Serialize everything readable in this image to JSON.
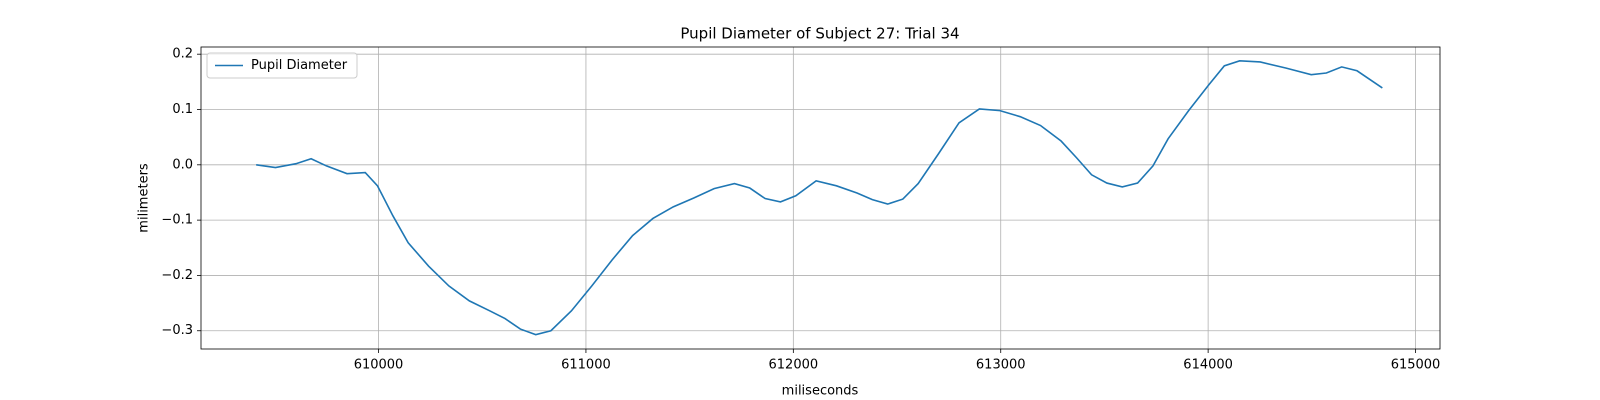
{
  "chart_data": {
    "type": "line",
    "title": "Pupil Diameter of Subject 27: Trial 34",
    "xlabel": "miliseconds",
    "ylabel": "milimeters",
    "grid": true,
    "legend": "upper left",
    "xlim": [
      609144,
      615118
    ],
    "ylim": [
      -0.333,
      0.213
    ],
    "xticks": [
      610000,
      611000,
      612000,
      613000,
      614000,
      615000
    ],
    "yticks": [
      {
        "value": -0.3,
        "label": "−0.3"
      },
      {
        "value": -0.2,
        "label": "−0.2"
      },
      {
        "value": -0.1,
        "label": "−0.1"
      },
      {
        "value": 0.0,
        "label": "0.0"
      },
      0.1,
      0.2
    ],
    "x": [
      609410,
      609503,
      609602,
      609675,
      609749,
      609848,
      609936,
      609995,
      610069,
      610143,
      610241,
      610339,
      610438,
      610536,
      610610,
      610684,
      610758,
      610831,
      610930,
      611028,
      611126,
      611225,
      611323,
      611421,
      611520,
      611618,
      611716,
      611790,
      611864,
      611938,
      612012,
      612110,
      612208,
      612307,
      612381,
      612455,
      612528,
      612602,
      612700,
      612799,
      612897,
      612996,
      613094,
      613192,
      613291,
      613365,
      613438,
      613512,
      613586,
      613660,
      613734,
      613807,
      613906,
      614004,
      614078,
      614152,
      614251,
      614374,
      614497,
      614570,
      614644,
      614718,
      614840
    ],
    "series": [
      {
        "name": "Pupil Diameter",
        "color": "#1f77b4",
        "values": [
          0.0,
          -0.005,
          0.002,
          0.011,
          -0.002,
          -0.016,
          -0.014,
          -0.038,
          -0.092,
          -0.141,
          -0.183,
          -0.219,
          -0.246,
          -0.264,
          -0.278,
          -0.297,
          -0.307,
          -0.3,
          -0.264,
          -0.219,
          -0.172,
          -0.128,
          -0.097,
          -0.076,
          -0.06,
          -0.043,
          -0.034,
          -0.042,
          -0.061,
          -0.067,
          -0.056,
          -0.029,
          -0.038,
          -0.051,
          -0.063,
          -0.071,
          -0.062,
          -0.034,
          0.02,
          0.076,
          0.101,
          0.098,
          0.087,
          0.071,
          0.043,
          0.013,
          -0.018,
          -0.033,
          -0.04,
          -0.033,
          -0.002,
          0.047,
          0.098,
          0.145,
          0.179,
          0.188,
          0.186,
          0.175,
          0.163,
          0.166,
          0.177,
          0.17,
          0.139
        ]
      }
    ]
  }
}
